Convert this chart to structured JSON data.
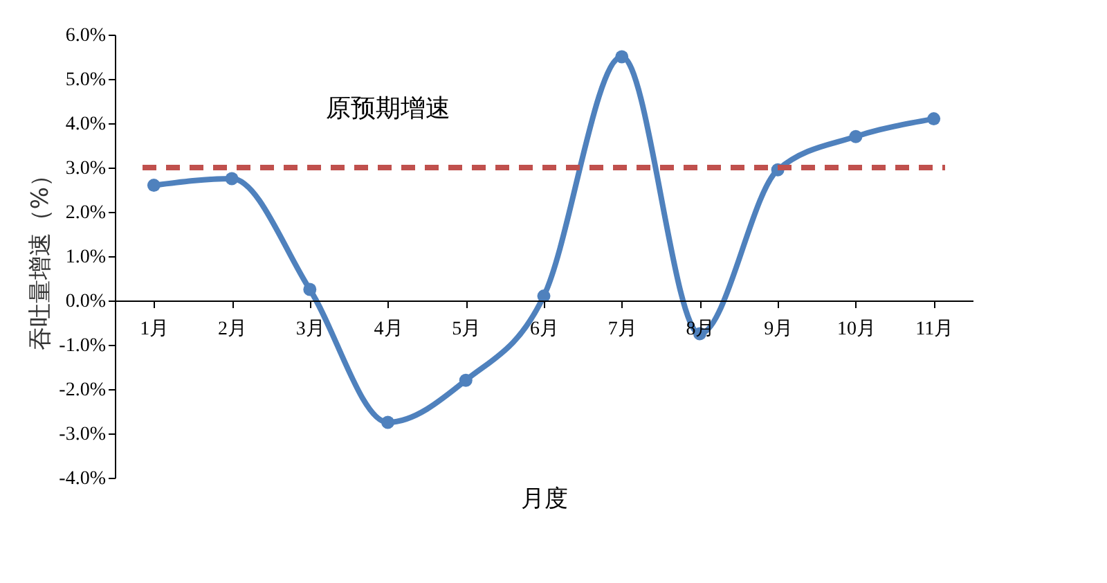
{
  "chart_data": {
    "type": "line",
    "xlabel": "月度",
    "ylabel": "吞吐量增速（%）",
    "categories": [
      "1月",
      "2月",
      "3月",
      "4月",
      "5月",
      "6月",
      "7月",
      "8月",
      "9月",
      "10月",
      "11月"
    ],
    "series": [
      {
        "color": "#4f81bd",
        "values": [
          2.6,
          2.75,
          0.25,
          -2.75,
          -1.8,
          0.1,
          5.5,
          -0.75,
          2.95,
          3.7,
          4.1
        ]
      }
    ],
    "ylim": [
      -4,
      6
    ],
    "yticks": [
      {
        "value": -4,
        "label": "-4.0%"
      },
      {
        "value": -3,
        "label": "-3.0%"
      },
      {
        "value": -2,
        "label": "-2.0%"
      },
      {
        "value": -1,
        "label": "-1.0%"
      },
      {
        "value": 0,
        "label": "0.0%"
      },
      {
        "value": 1,
        "label": "1.0%"
      },
      {
        "value": 2,
        "label": "2.0%"
      },
      {
        "value": 3,
        "label": "3.0%"
      },
      {
        "value": 4,
        "label": "4.0%"
      },
      {
        "value": 5,
        "label": "5.0%"
      },
      {
        "value": 6,
        "label": "6.0%"
      }
    ],
    "ref_lines": [
      {
        "axis": "y",
        "value": 3,
        "color": "#c0504d",
        "line_style": "dashed"
      }
    ],
    "annotations": [
      {
        "text": "原预期增速",
        "x": "4月",
        "y": 3
      }
    ],
    "marker": "circle",
    "grid": false
  }
}
